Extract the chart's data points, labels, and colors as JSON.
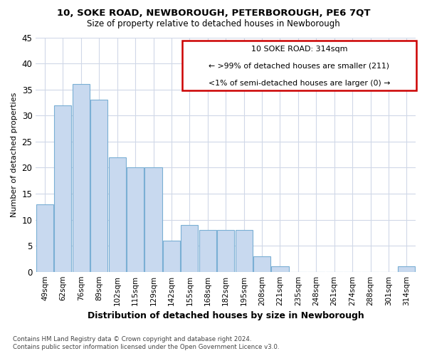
{
  "title1": "10, SOKE ROAD, NEWBOROUGH, PETERBOROUGH, PE6 7QT",
  "title2": "Size of property relative to detached houses in Newborough",
  "xlabel": "Distribution of detached houses by size in Newborough",
  "ylabel": "Number of detached properties",
  "categories": [
    "49sqm",
    "62sqm",
    "76sqm",
    "89sqm",
    "102sqm",
    "115sqm",
    "129sqm",
    "142sqm",
    "155sqm",
    "168sqm",
    "182sqm",
    "195sqm",
    "208sqm",
    "221sqm",
    "235sqm",
    "248sqm",
    "261sqm",
    "274sqm",
    "288sqm",
    "301sqm",
    "314sqm"
  ],
  "values": [
    13,
    32,
    36,
    33,
    22,
    20,
    20,
    6,
    9,
    8,
    8,
    8,
    3,
    1,
    0,
    0,
    0,
    0,
    0,
    0,
    1
  ],
  "bar_color": "#c8d9ef",
  "bar_edge_color": "#7aafd4",
  "highlight_bar_index": 20,
  "box_text_line1": "10 SOKE ROAD: 314sqm",
  "box_text_line2": "← >99% of detached houses are smaller (211)",
  "box_text_line3": "<1% of semi-detached houses are larger (0) →",
  "box_color": "#cc0000",
  "background_color": "#ffffff",
  "grid_color": "#d0d8e8",
  "ylim": [
    0,
    45
  ],
  "yticks": [
    0,
    5,
    10,
    15,
    20,
    25,
    30,
    35,
    40,
    45
  ],
  "footer1": "Contains HM Land Registry data © Crown copyright and database right 2024.",
  "footer2": "Contains public sector information licensed under the Open Government Licence v3.0."
}
